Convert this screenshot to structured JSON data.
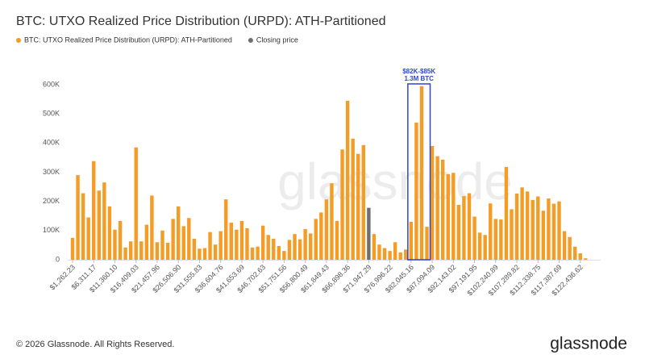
{
  "chart_data": {
    "type": "bar",
    "title": "BTC: UTXO Realized Price Distribution (URPD): ATH-Partitioned",
    "categories": [
      "$1,262.23",
      null,
      null,
      null,
      "$6,311.17",
      null,
      null,
      null,
      "$11,360.10",
      null,
      null,
      null,
      "$16,409.03",
      null,
      null,
      null,
      "$21,457.96",
      null,
      null,
      null,
      "$26,506.90",
      null,
      null,
      null,
      "$31,555.83",
      null,
      null,
      null,
      "$36,604.76",
      null,
      null,
      null,
      "$41,653.69",
      null,
      null,
      null,
      "$46,702.63",
      null,
      null,
      null,
      "$51,751.56",
      null,
      null,
      null,
      "$56,800.49",
      null,
      null,
      null,
      "$61,849.43",
      null,
      null,
      null,
      "$66,898.36",
      null,
      null,
      null,
      "$71,947.29",
      null,
      null,
      null,
      "$76,996.22",
      null,
      null,
      null,
      "$82,045.16",
      null,
      null,
      null,
      "$87,094.09",
      null,
      null,
      null,
      "$92,143.02",
      null,
      null,
      null,
      "$97,191.95",
      null,
      null,
      null,
      "$102,240.89",
      null,
      null,
      null,
      "$107,289.82",
      null,
      null,
      null,
      "$112,338.75",
      null,
      null,
      null,
      "$117,387.69",
      null,
      null,
      null,
      "$122,436.62",
      null
    ],
    "series": [
      {
        "name": "BTC: UTXO Realized Price Distribution (URPD): ATH-Partitioned",
        "color": "#f39c26",
        "values": [
          75000,
          290000,
          228000,
          145000,
          338000,
          237000,
          265000,
          183000,
          103000,
          133000,
          42000,
          63000,
          385000,
          63000,
          120000,
          220000,
          60000,
          100000,
          58000,
          140000,
          183000,
          115000,
          143000,
          72000,
          38000,
          40000,
          95000,
          52000,
          98000,
          207000,
          127000,
          103000,
          133000,
          108000,
          42000,
          45000,
          117000,
          85000,
          72000,
          47000,
          30000,
          68000,
          88000,
          70000,
          105000,
          90000,
          140000,
          162000,
          207000,
          262000,
          133000,
          378000,
          545000,
          415000,
          363000,
          393000,
          null,
          88000,
          52000,
          40000,
          30000,
          60000,
          25000,
          35000,
          130000,
          470000,
          595000,
          113000,
          390000,
          355000,
          343000,
          293000,
          298000,
          188000,
          218000,
          228000,
          148000,
          93000,
          85000,
          193000,
          140000,
          138000,
          318000,
          173000,
          227000,
          248000,
          234000,
          205000,
          217000,
          168000,
          210000,
          192000,
          200000,
          98000,
          78000,
          45000,
          22000,
          5000
        ]
      },
      {
        "name": "Closing price",
        "color": "#6e6e6e",
        "values": [
          null,
          null,
          null,
          null,
          null,
          null,
          null,
          null,
          null,
          null,
          null,
          null,
          null,
          null,
          null,
          null,
          null,
          null,
          null,
          null,
          null,
          null,
          null,
          null,
          null,
          null,
          null,
          null,
          null,
          null,
          null,
          null,
          null,
          null,
          null,
          null,
          null,
          null,
          null,
          null,
          null,
          null,
          null,
          null,
          null,
          null,
          null,
          null,
          null,
          null,
          null,
          null,
          null,
          null,
          null,
          null,
          178000,
          null,
          null,
          null,
          null,
          null,
          null,
          null,
          null,
          null,
          null,
          null,
          null,
          null,
          null,
          null,
          null,
          null,
          null,
          null,
          null,
          null,
          null,
          null,
          null,
          null,
          null,
          null,
          null,
          null,
          null,
          null,
          null,
          null,
          null,
          null,
          null,
          null,
          null,
          null,
          null,
          null
        ]
      }
    ],
    "ylim": [
      0,
      600000
    ],
    "yticks": [
      0,
      {
        "value": 100000,
        "label": "100K"
      },
      {
        "value": 200000,
        "label": "200K"
      },
      {
        "value": 300000,
        "label": "300K"
      },
      {
        "value": 400000,
        "label": "400K"
      },
      {
        "value": 500000,
        "label": "500K"
      },
      {
        "value": 600000,
        "label": "600K"
      }
    ],
    "grid": false,
    "annotation": {
      "lines": [
        "$82K-$85K",
        "1.3M BTC"
      ],
      "color": "#2a47d6"
    },
    "watermark": "glassnode",
    "footer": "© 2026 Glassnode. All Rights Reserved.",
    "logo": "glassnode"
  }
}
